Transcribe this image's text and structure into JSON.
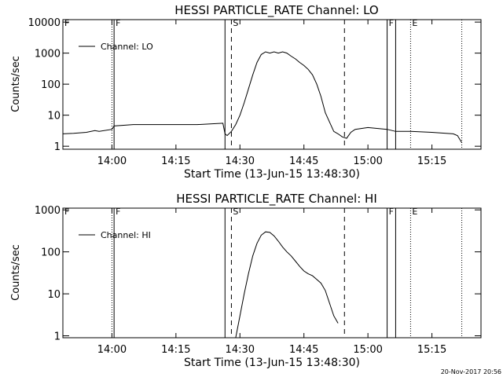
{
  "footer_text": "20-Nov-2017 20:56",
  "chart_data": [
    {
      "type": "line",
      "title": "HESSI PARTICLE_RATE Channel: LO",
      "xlabel": "Start Time (13-Jun-15 13:48:30)",
      "ylabel": "Counts/sec",
      "yscale": "log",
      "xlim": [
        "13:48:30",
        "15:26:30"
      ],
      "ylim": [
        0.8,
        12000
      ],
      "xticks": [
        "14:00",
        "14:15",
        "14:30",
        "14:45",
        "15:00",
        "15:15"
      ],
      "yticks": [
        "1",
        "10",
        "100",
        "1000",
        "10000"
      ],
      "legend": {
        "label": "Channel: LO",
        "position": "top-left"
      },
      "markers": [
        {
          "time": "13:48:30",
          "label": "F",
          "style": "dotted"
        },
        {
          "time": "14:00:00",
          "label": "",
          "style": "dotted"
        },
        {
          "time": "14:00:30",
          "label": "F",
          "style": "solid"
        },
        {
          "time": "14:26:30",
          "label": "",
          "style": "solid"
        },
        {
          "time": "14:28:00",
          "label": "S",
          "style": "dashed"
        },
        {
          "time": "14:54:30",
          "label": "",
          "style": "dashed"
        },
        {
          "time": "15:04:30",
          "label": "F",
          "style": "solid"
        },
        {
          "time": "15:06:30",
          "label": "",
          "style": "solid"
        },
        {
          "time": "15:10:00",
          "label": "E",
          "style": "dotted"
        },
        {
          "time": "15:22:00",
          "label": "",
          "style": "dotted"
        }
      ],
      "series": [
        {
          "x": [
            "13:48:30",
            "13:51:00",
            "13:54:00",
            "13:56:00",
            "13:57:00",
            "14:00:00",
            "14:00:30",
            "14:05:00",
            "14:10:00",
            "14:15:00",
            "14:20:00",
            "14:26:00",
            "14:26:30",
            "14:27:00",
            "14:28:00",
            "14:29:00",
            "14:30:00",
            "14:31:00",
            "14:32:00",
            "14:33:00",
            "14:34:00",
            "14:35:00",
            "14:36:00",
            "14:37:00",
            "14:38:00",
            "14:39:00",
            "14:40:00",
            "14:41:00",
            "14:42:00",
            "14:43:00",
            "14:44:00",
            "14:45:00",
            "14:46:00",
            "14:47:00",
            "14:48:00",
            "14:49:00",
            "14:50:00",
            "14:51:00",
            "14:52:00",
            "14:53:00",
            "14:54:00",
            "14:55:00",
            "14:56:00",
            "14:57:00",
            "15:00:00",
            "15:04:30",
            "15:06:30",
            "15:10:00",
            "15:15:00",
            "15:20:00",
            "15:21:00",
            "15:22:00"
          ],
          "y": [
            2.5,
            2.6,
            2.8,
            3.2,
            3.0,
            3.5,
            4.5,
            5,
            5,
            5,
            5,
            5.5,
            2.5,
            2.2,
            3.0,
            5,
            10,
            25,
            70,
            200,
            500,
            900,
            1100,
            1000,
            1100,
            1000,
            1100,
            1000,
            800,
            650,
            500,
            400,
            300,
            200,
            100,
            40,
            12,
            6,
            3,
            2.5,
            2.0,
            1.8,
            2.8,
            3.5,
            4,
            3.5,
            3,
            3,
            2.8,
            2.5,
            2.2,
            1.3
          ]
        }
      ]
    },
    {
      "type": "line",
      "title": "HESSI PARTICLE_RATE Channel: HI",
      "xlabel": "Start Time (13-Jun-15 13:48:30)",
      "ylabel": "Counts/sec",
      "yscale": "log",
      "xlim": [
        "13:48:30",
        "15:26:30"
      ],
      "ylim": [
        0.9,
        1100
      ],
      "xticks": [
        "14:00",
        "14:15",
        "14:30",
        "14:45",
        "15:00",
        "15:15"
      ],
      "yticks": [
        "1",
        "10",
        "100",
        "1000"
      ],
      "legend": {
        "label": "Channel: HI",
        "position": "top-left"
      },
      "markers": [
        {
          "time": "13:48:30",
          "label": "F",
          "style": "dotted"
        },
        {
          "time": "14:00:00",
          "label": "",
          "style": "dotted"
        },
        {
          "time": "14:00:30",
          "label": "F",
          "style": "solid"
        },
        {
          "time": "14:26:30",
          "label": "",
          "style": "solid"
        },
        {
          "time": "14:28:00",
          "label": "S",
          "style": "dashed"
        },
        {
          "time": "14:54:30",
          "label": "",
          "style": "dashed"
        },
        {
          "time": "15:04:30",
          "label": "F",
          "style": "solid"
        },
        {
          "time": "15:06:30",
          "label": "",
          "style": "solid"
        },
        {
          "time": "15:10:00",
          "label": "E",
          "style": "dotted"
        },
        {
          "time": "15:22:00",
          "label": "",
          "style": "dotted"
        }
      ],
      "series": [
        {
          "x": [
            "14:29:00",
            "14:30:00",
            "14:31:00",
            "14:32:00",
            "14:33:00",
            "14:34:00",
            "14:35:00",
            "14:36:00",
            "14:37:00",
            "14:38:00",
            "14:39:00",
            "14:40:00",
            "14:41:00",
            "14:42:00",
            "14:43:00",
            "14:44:00",
            "14:45:00",
            "14:46:00",
            "14:47:00",
            "14:48:00",
            "14:49:00",
            "14:50:00",
            "14:51:00",
            "14:52:00",
            "14:53:00"
          ],
          "y": [
            0.9,
            3,
            10,
            30,
            80,
            160,
            250,
            300,
            290,
            240,
            180,
            130,
            100,
            80,
            60,
            45,
            35,
            30,
            27,
            22,
            18,
            12,
            6,
            3,
            2
          ]
        }
      ]
    }
  ]
}
